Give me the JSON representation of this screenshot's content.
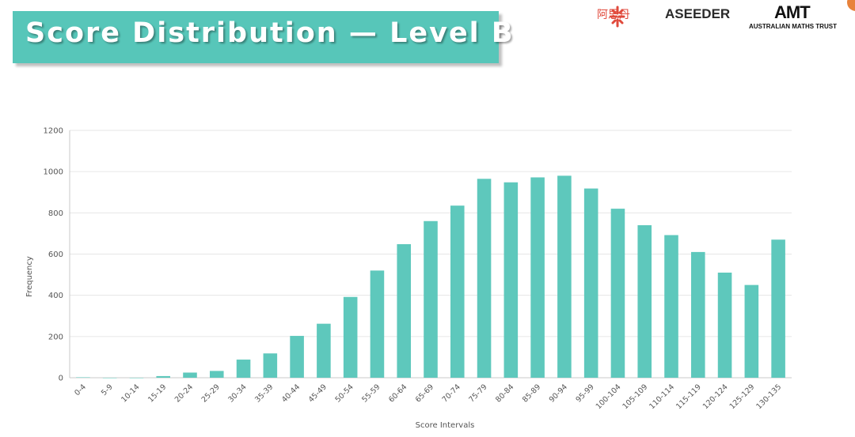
{
  "title": "Score Distribution — Level B",
  "logos": {
    "asdan_text": "阿思丹",
    "aseeder_text": "ASEEDER",
    "amt_mark": "AMT",
    "amt_subtitle": "AUSTRALIAN MATHS TRUST"
  },
  "colors": {
    "bar": "#5ec8bc",
    "banner": "#57c6b9",
    "grid": "#e6e6e6",
    "axis": "#c8c8c8",
    "tick_text": "#555555"
  },
  "chart_data": {
    "type": "bar",
    "title": "",
    "xlabel": "Score Intervals",
    "ylabel": "Frequency",
    "ylim": [
      0,
      1200
    ],
    "yticks": [
      0,
      200,
      400,
      600,
      800,
      1000,
      1200
    ],
    "grid": true,
    "legend": "none",
    "categories": [
      "0-4",
      "5-9",
      "10-14",
      "15-19",
      "20-24",
      "25-29",
      "30-34",
      "35-39",
      "40-44",
      "45-49",
      "50-54",
      "55-59",
      "60-64",
      "65-69",
      "70-74",
      "75-79",
      "80-84",
      "85-89",
      "90-94",
      "95-99",
      "100-104",
      "105-109",
      "110-114",
      "115-119",
      "120-124",
      "125-129",
      "130-135"
    ],
    "values": [
      2,
      0,
      0,
      8,
      25,
      33,
      88,
      118,
      203,
      262,
      392,
      520,
      648,
      760,
      835,
      965,
      948,
      972,
      980,
      918,
      820,
      740,
      692,
      610,
      510,
      450,
      670
    ]
  }
}
